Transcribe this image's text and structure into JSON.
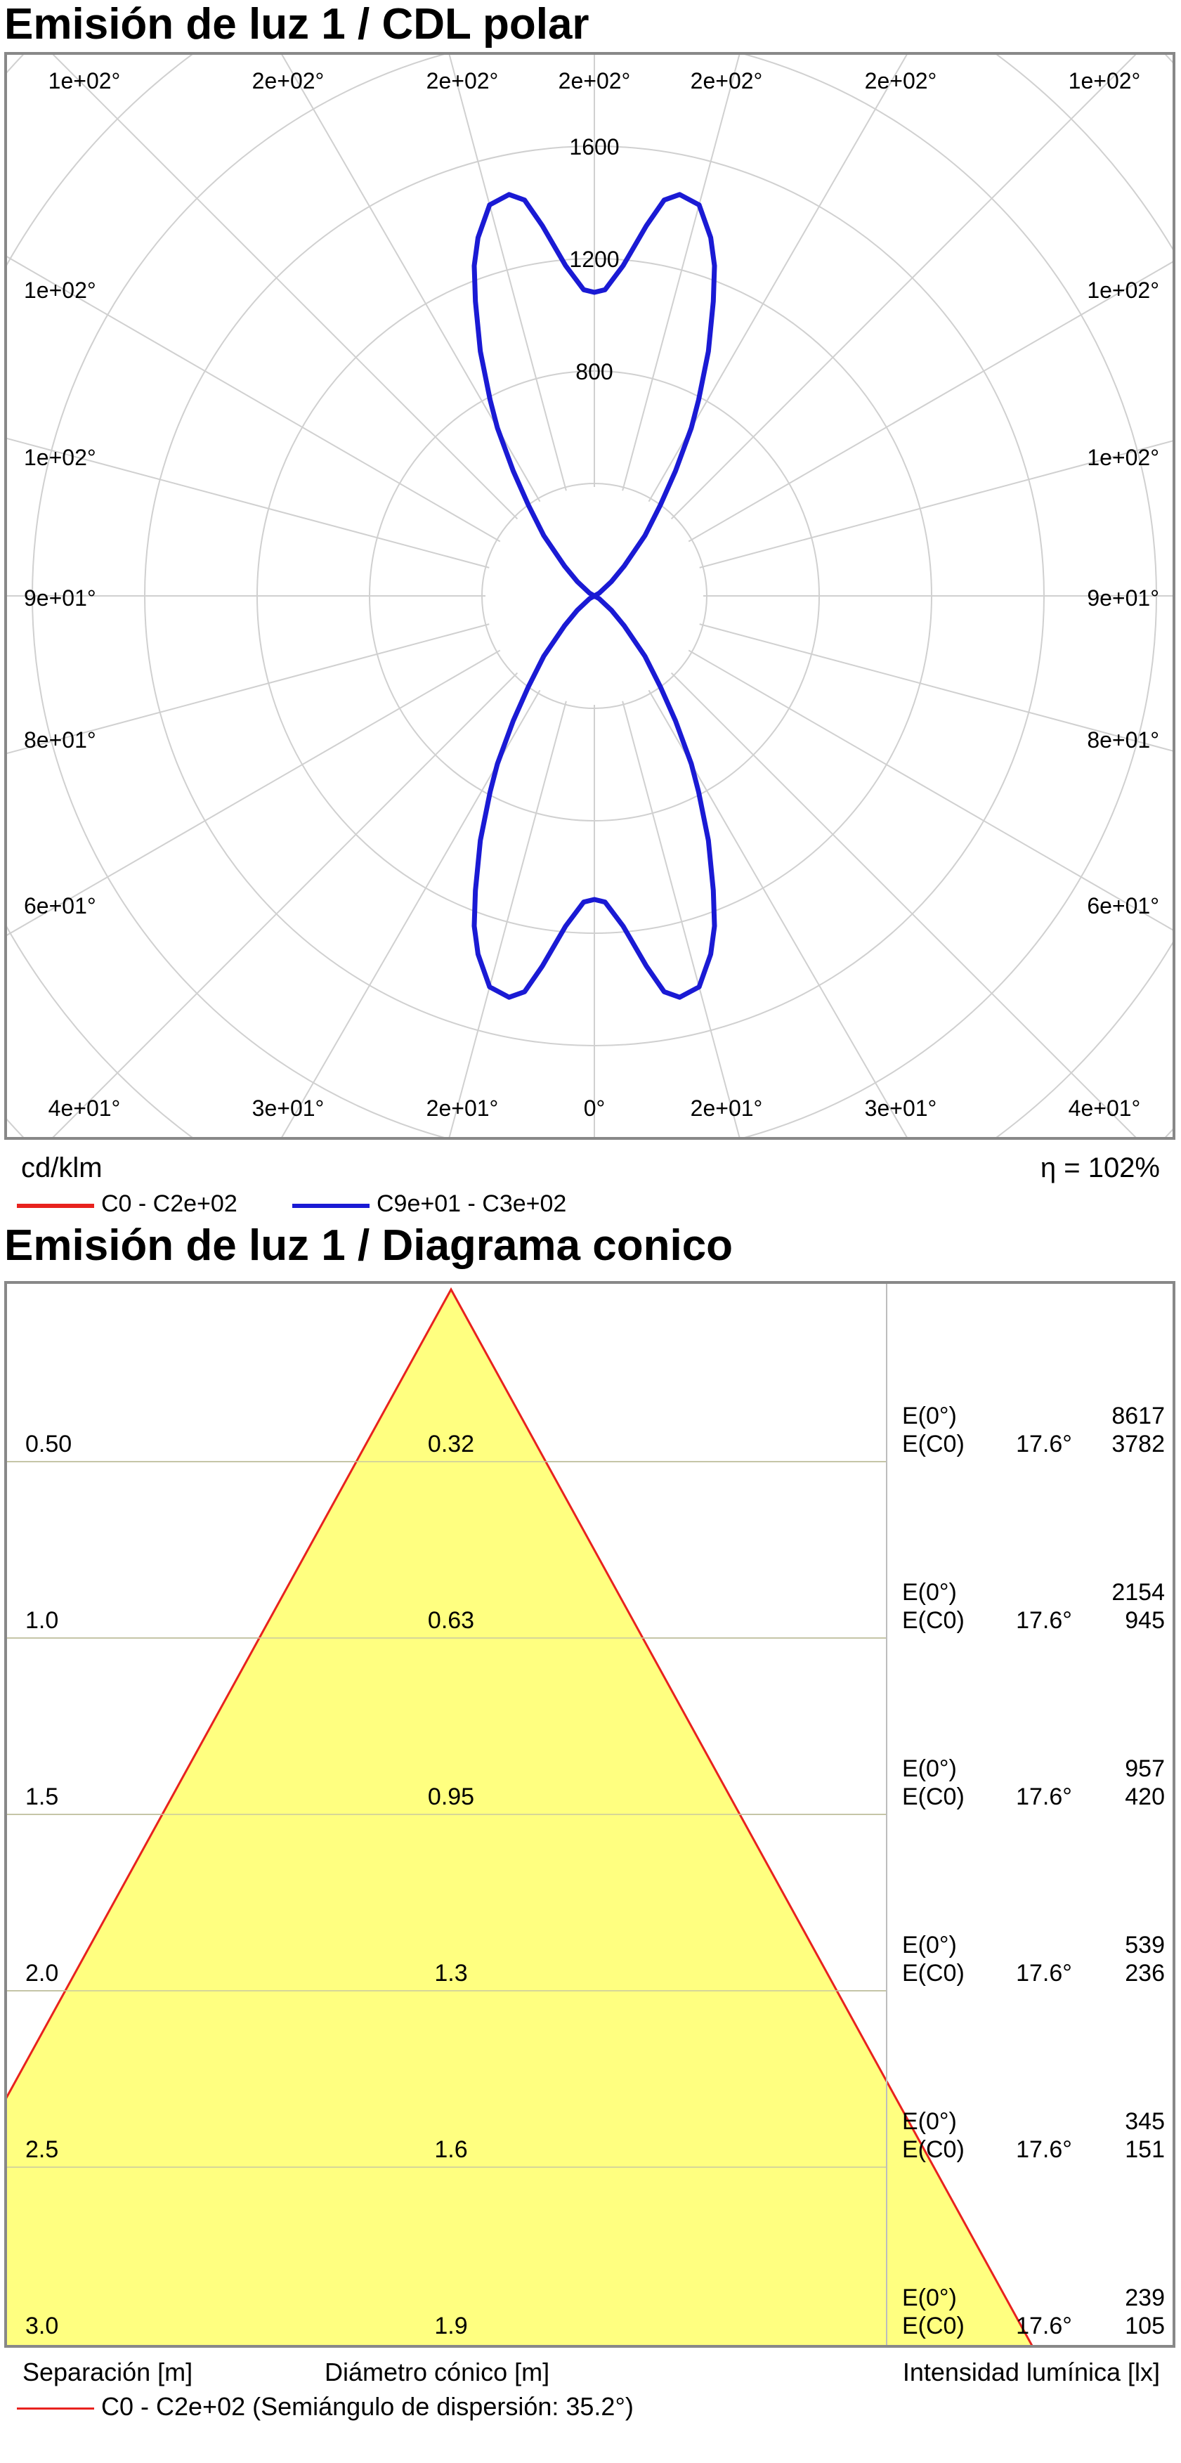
{
  "polar_section": {
    "title": "Emisión de luz 1 / CDL polar",
    "unit_label": "cd/klm",
    "efficiency": "η = 102%",
    "legend": [
      {
        "label": "C0 - C2e+02",
        "color": "#e8221e"
      },
      {
        "label": "C9e+01 - C3e+02",
        "color": "#1a1ad4"
      }
    ]
  },
  "cone_section": {
    "title": "Emisión de luz 1 / Diagrama conico",
    "footer_left": "Separación [m]",
    "footer_mid": "Diámetro cónico [m]",
    "footer_right": "Intensidad lumínica [lx]",
    "legend": {
      "label": "C0 - C2e+02 (Semiángulo de dispersión: 35.2°)",
      "color": "#e8221e"
    }
  },
  "chart_data": [
    {
      "type": "polar",
      "title": "Emisión de luz 1 / CDL polar",
      "unit": "cd/klm",
      "radial_ticks": [
        "800",
        "1200",
        "1600"
      ],
      "radial_max": 2000,
      "angle_labels": {
        "top": [
          "1e+02°",
          "2e+02°",
          "2e+02°",
          "2e+02°",
          "2e+02°",
          "2e+02°",
          "1e+02°"
        ],
        "left": [
          "1e+02°",
          "1e+02°",
          "9e+01°",
          "8e+01°",
          "6e+01°"
        ],
        "right": [
          "1e+02°",
          "1e+02°",
          "9e+01°",
          "8e+01°",
          "6e+01°"
        ],
        "bottom": [
          "4e+01°",
          "3e+01°",
          "2e+01°",
          "0°",
          "2e+01°",
          "3e+01°",
          "4e+01°"
        ]
      },
      "series": [
        {
          "name": "C9e+01 - C3e+02",
          "color": "#1a1ad4",
          "angles_deg": [
            0,
            2,
            5,
            8,
            10,
            12,
            15,
            18,
            20,
            22,
            25,
            28,
            30,
            33,
            36,
            40,
            45,
            50,
            60
          ],
          "values_down": [
            1080,
            1090,
            1180,
            1330,
            1430,
            1460,
            1440,
            1340,
            1250,
            1130,
            960,
            790,
            690,
            530,
            400,
            280,
            150,
            80,
            20
          ],
          "values_up": [
            1080,
            1090,
            1180,
            1330,
            1430,
            1460,
            1440,
            1340,
            1250,
            1130,
            960,
            790,
            690,
            530,
            400,
            280,
            150,
            80,
            20
          ]
        },
        {
          "name": "C0 - C2e+02",
          "color": "#e8221e",
          "angles_deg": [],
          "values_down": [],
          "values_up": []
        }
      ],
      "efficiency": "η = 102%"
    },
    {
      "type": "table",
      "title": "Emisión de luz 1 / Diagrama conico",
      "half_angle_deg": 35.2,
      "rows": [
        {
          "separation": "0.50",
          "diameter": "0.32",
          "e0_label": "E(0°)",
          "e0": "8617",
          "ec_label": "E(C0)",
          "ec_angle": "17.6°",
          "ec": "3782"
        },
        {
          "separation": "1.0",
          "diameter": "0.63",
          "e0_label": "E(0°)",
          "e0": "2154",
          "ec_label": "E(C0)",
          "ec_angle": "17.6°",
          "ec": "945"
        },
        {
          "separation": "1.5",
          "diameter": "0.95",
          "e0_label": "E(0°)",
          "e0": "957",
          "ec_label": "E(C0)",
          "ec_angle": "17.6°",
          "ec": "420"
        },
        {
          "separation": "2.0",
          "diameter": "1.3",
          "e0_label": "E(0°)",
          "e0": "539",
          "ec_label": "E(C0)",
          "ec_angle": "17.6°",
          "ec": "236"
        },
        {
          "separation": "2.5",
          "diameter": "1.6",
          "e0_label": "E(0°)",
          "e0": "345",
          "ec_label": "E(C0)",
          "ec_angle": "17.6°",
          "ec": "151"
        },
        {
          "separation": "3.0",
          "diameter": "1.9",
          "e0_label": "E(0°)",
          "e0": "239",
          "ec_label": "E(C0)",
          "ec_angle": "17.6°",
          "ec": "105"
        }
      ],
      "cone_color": "#ffff80",
      "cone_edge_color": "#e8221e"
    }
  ]
}
